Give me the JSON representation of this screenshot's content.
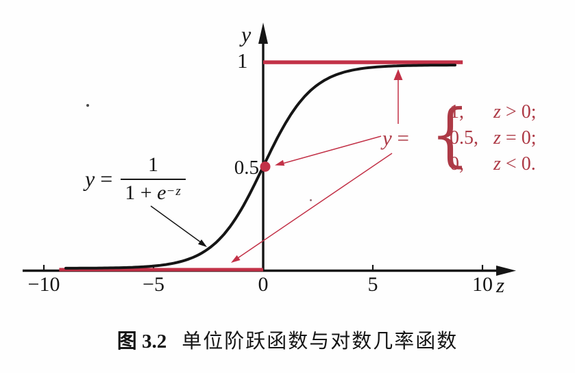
{
  "colors": {
    "red_line": "#c23147",
    "red_text": "#ad3a46",
    "ink": "#151515"
  },
  "axes": {
    "x_label": "z",
    "y_label": "y",
    "x_tick_labels": [
      "−10",
      "−5",
      "0",
      "5",
      "10"
    ],
    "y_tick_one": "1",
    "y_tick_half": "0.5"
  },
  "sigmoid_label": {
    "lhs_var": "y",
    "eq": " =",
    "numerator": "1",
    "den_pre": "1 + ",
    "den_base": "e",
    "den_sup": "−z"
  },
  "step_label": {
    "lhs_var": "y",
    "eq": " =",
    "brace": "{",
    "rows": [
      {
        "value": "1,",
        "cond_var": "z",
        "cond_rest": " > 0;"
      },
      {
        "value": "0.5,",
        "cond_var": "z",
        "cond_rest": " = 0;"
      },
      {
        "value": "0,",
        "cond_var": "z",
        "cond_rest": " < 0."
      }
    ]
  },
  "caption": {
    "label": "图 3.2",
    "text": "单位阶跃函数与对数几率函数"
  },
  "chart_data": {
    "type": "line",
    "title": "图 3.2 单位阶跃函数与对数几率函数",
    "xlabel": "z",
    "ylabel": "y",
    "xlim": [
      -10.9,
      11.5
    ],
    "ylim": [
      0,
      1.2
    ],
    "x_ticks": [
      -10,
      -5,
      0,
      5,
      10
    ],
    "y_ticks": [
      0.5,
      1
    ],
    "grid": false,
    "legend": "none",
    "series": [
      {
        "name": "单位阶跃函数 (unit step function)",
        "type": "step",
        "color_key": "red_line",
        "segments": [
          {
            "x": [
              -9.3,
              0
            ],
            "y": [
              0,
              0
            ]
          },
          {
            "x": [
              0,
              9.1
            ],
            "y": [
              1,
              1
            ]
          }
        ],
        "point": {
          "x": 0,
          "y": 0.5
        }
      },
      {
        "name": "对数几率函数 (logistic function)",
        "type": "logistic",
        "color_key": "ink",
        "formula": "y = 1/(1+e^(−z))",
        "x_range": [
          -9,
          8.75
        ],
        "samples": 140
      }
    ],
    "annotations": [
      {
        "text": "y = 1/(1+e^(−z))",
        "target": "logistic curve",
        "color": "black"
      },
      {
        "text": "y = { 1, z > 0; 0.5, z = 0; 0, z < 0. }",
        "targets": [
          "upper step segment (y=1)",
          "point (0, 0.5)",
          "lower step segment (y=0)"
        ],
        "color": "red"
      }
    ]
  }
}
